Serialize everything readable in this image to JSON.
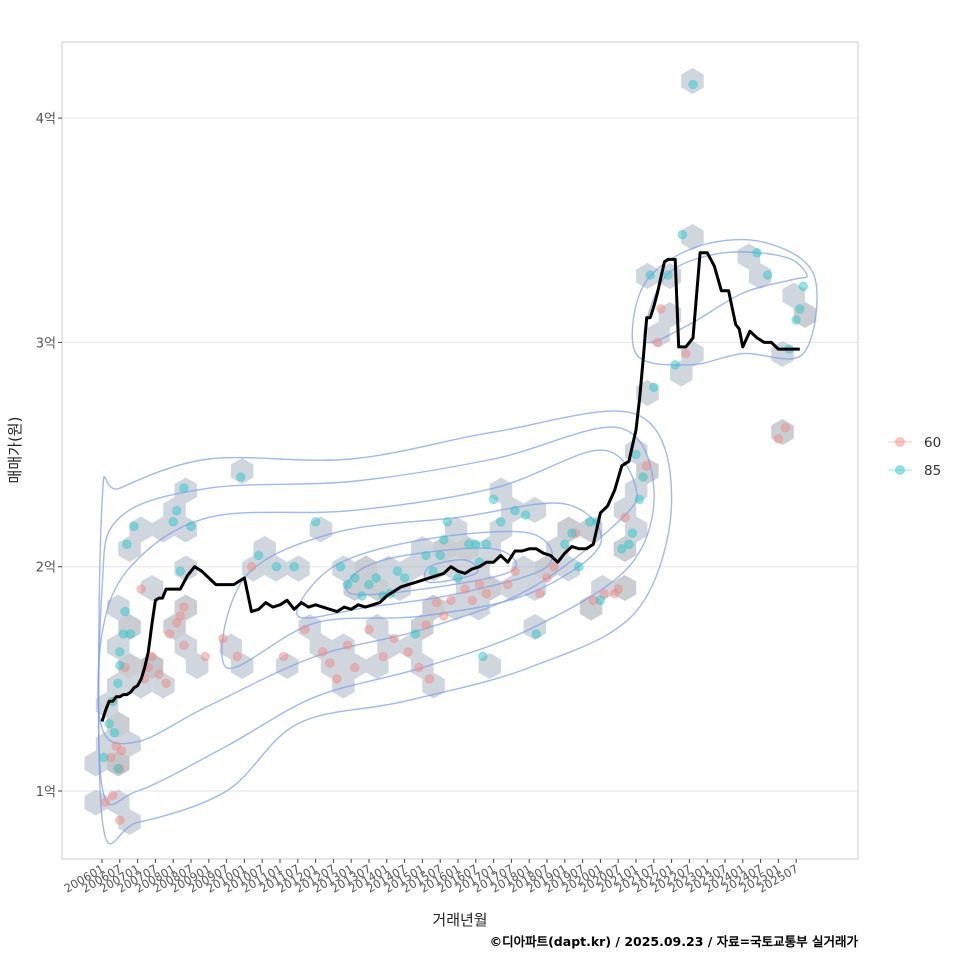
{
  "chart_data": {
    "type": "scatter",
    "title": "",
    "xlabel": "거래년월",
    "ylabel": "매매가(원)",
    "caption": "©디아파트(dapt.kr) / 2025.09.23 / 자료=국토교통부 실거래가",
    "y_unit": "억",
    "ylim": [
      0.7,
      4.33
    ],
    "y_ticks": [
      {
        "v": 1,
        "label": "1억"
      },
      {
        "v": 2,
        "label": "2억"
      },
      {
        "v": 3,
        "label": "3억"
      },
      {
        "v": 4,
        "label": "4억"
      }
    ],
    "x_ticks": [
      "200601",
      "200607",
      "200701",
      "200707",
      "200801",
      "200807",
      "200901",
      "200907",
      "201001",
      "201007",
      "201101",
      "201107",
      "201201",
      "201207",
      "201301",
      "201307",
      "201401",
      "201407",
      "201501",
      "201507",
      "201601",
      "201607",
      "201701",
      "201707",
      "201801",
      "201807",
      "201901",
      "201907",
      "202001",
      "202007",
      "202101",
      "202107",
      "202201",
      "202207",
      "202301",
      "202307",
      "202401",
      "202407",
      "202501",
      "202507"
    ],
    "grid": true,
    "legend": {
      "position": "right",
      "entries": [
        {
          "name": "60",
          "color": "#f08a86"
        },
        {
          "name": "85",
          "color": "#2ec6c9"
        }
      ]
    },
    "colors": {
      "s60": "#f08a86",
      "s85": "#2ec6c9",
      "line": "#000000",
      "contour": "#7b9be8",
      "hex": "#9fa5ab",
      "panel_border": "#cccccc",
      "grid": "#e6e6e6"
    },
    "trend_line": {
      "name": "median",
      "x": [
        2006.0,
        2006.1,
        2006.2,
        2006.3,
        2006.4,
        2006.5,
        2006.6,
        2006.7,
        2006.8,
        2006.9,
        2007.0,
        2007.1,
        2007.2,
        2007.3,
        2007.4,
        2007.5,
        2007.6,
        2007.7,
        2007.8,
        2007.9,
        2008.0,
        2008.2,
        2008.4,
        2008.6,
        2008.8,
        2009.0,
        2009.2,
        2009.4,
        2009.6,
        2009.7,
        2009.8,
        2010.0,
        2010.2,
        2010.4,
        2010.6,
        2010.8,
        2011.0,
        2011.2,
        2011.4,
        2011.6,
        2011.8,
        2012.0,
        2012.2,
        2012.4,
        2012.6,
        2012.8,
        2013.0,
        2013.2,
        2013.4,
        2013.6,
        2013.8,
        2014.0,
        2014.2,
        2014.4,
        2014.6,
        2014.8,
        2015.0,
        2015.2,
        2015.4,
        2015.6,
        2015.8,
        2016.0,
        2016.2,
        2016.4,
        2016.6,
        2016.8,
        2017.0,
        2017.2,
        2017.4,
        2017.6,
        2017.8,
        2018.0,
        2018.2,
        2018.4,
        2018.6,
        2018.8,
        2019.0,
        2019.2,
        2019.4,
        2019.6,
        2019.8,
        2020.0,
        2020.2,
        2020.4,
        2020.6,
        2020.8,
        2021.0,
        2021.1,
        2021.2,
        2021.3,
        2021.4,
        2021.5,
        2021.6,
        2021.7,
        2021.8,
        2021.9,
        2022.0,
        2022.1,
        2022.2,
        2022.3,
        2022.4,
        2022.6,
        2022.8,
        2022.9,
        2023.0,
        2023.2,
        2023.4,
        2023.6,
        2023.8,
        2023.9,
        2024.0,
        2024.2,
        2024.4,
        2024.6,
        2024.8,
        2025.0,
        2025.2,
        2025.4,
        2025.6
      ],
      "y": [
        1.31,
        1.36,
        1.4,
        1.4,
        1.42,
        1.42,
        1.43,
        1.43,
        1.44,
        1.46,
        1.47,
        1.5,
        1.55,
        1.62,
        1.74,
        1.85,
        1.86,
        1.86,
        1.9,
        1.9,
        1.9,
        1.9,
        1.96,
        2.0,
        1.98,
        1.95,
        1.92,
        1.92,
        1.92,
        1.92,
        1.93,
        1.95,
        1.8,
        1.81,
        1.84,
        1.82,
        1.83,
        1.85,
        1.81,
        1.84,
        1.82,
        1.83,
        1.82,
        1.81,
        1.8,
        1.82,
        1.81,
        1.83,
        1.82,
        1.83,
        1.84,
        1.87,
        1.89,
        1.91,
        1.92,
        1.93,
        1.94,
        1.95,
        1.96,
        1.97,
        2.0,
        1.98,
        1.97,
        1.99,
        2.0,
        2.02,
        2.02,
        2.05,
        2.02,
        2.07,
        2.07,
        2.08,
        2.08,
        2.06,
        2.05,
        2.02,
        2.06,
        2.09,
        2.08,
        2.08,
        2.1,
        2.24,
        2.27,
        2.34,
        2.45,
        2.47,
        2.61,
        2.75,
        2.92,
        3.11,
        3.11,
        3.16,
        3.22,
        3.29,
        3.36,
        3.37,
        3.37,
        3.37,
        2.98,
        2.98,
        2.98,
        3.02,
        3.4,
        3.4,
        3.4,
        3.34,
        3.23,
        3.23,
        3.08,
        3.06,
        2.98,
        3.05,
        3.02,
        3.0,
        3.0,
        2.97,
        2.97,
        2.97,
        2.97
      ]
    },
    "series": [
      {
        "name": "60",
        "points": [
          [
            2006.1,
            0.95
          ],
          [
            2006.25,
            1.15
          ],
          [
            2006.4,
            1.2
          ],
          [
            2006.5,
            1.1
          ],
          [
            2006.55,
            1.18
          ],
          [
            2006.65,
            1.55
          ],
          [
            2006.3,
            0.98
          ],
          [
            2006.5,
            0.87
          ],
          [
            2007.1,
            1.9
          ],
          [
            2007.2,
            1.5
          ],
          [
            2007.3,
            1.55
          ],
          [
            2007.4,
            1.6
          ],
          [
            2007.6,
            1.52
          ],
          [
            2007.8,
            1.48
          ],
          [
            2007.9,
            1.7
          ],
          [
            2008.1,
            1.75
          ],
          [
            2008.2,
            1.78
          ],
          [
            2008.3,
            1.82
          ],
          [
            2008.3,
            1.65
          ],
          [
            2008.9,
            1.6
          ],
          [
            2009.4,
            1.68
          ],
          [
            2009.8,
            1.6
          ],
          [
            2010.2,
            2.0
          ],
          [
            2011.1,
            1.6
          ],
          [
            2011.7,
            1.72
          ],
          [
            2012.2,
            1.62
          ],
          [
            2012.4,
            1.57
          ],
          [
            2012.6,
            1.5
          ],
          [
            2012.9,
            1.65
          ],
          [
            2013.1,
            1.55
          ],
          [
            2013.5,
            1.72
          ],
          [
            2013.9,
            1.6
          ],
          [
            2014.2,
            1.68
          ],
          [
            2014.6,
            1.62
          ],
          [
            2014.9,
            1.55
          ],
          [
            2015.1,
            1.74
          ],
          [
            2015.2,
            1.5
          ],
          [
            2015.4,
            1.84
          ],
          [
            2015.6,
            1.78
          ],
          [
            2015.8,
            1.85
          ],
          [
            2016.2,
            1.9
          ],
          [
            2016.4,
            1.85
          ],
          [
            2016.6,
            1.92
          ],
          [
            2016.8,
            1.88
          ],
          [
            2017.4,
            1.92
          ],
          [
            2017.6,
            1.98
          ],
          [
            2018.3,
            1.88
          ],
          [
            2018.5,
            1.95
          ],
          [
            2018.7,
            2.0
          ],
          [
            2019.3,
            2.15
          ],
          [
            2019.8,
            1.85
          ],
          [
            2020.1,
            1.88
          ],
          [
            2020.4,
            1.88
          ],
          [
            2020.5,
            1.9
          ],
          [
            2020.7,
            2.22
          ],
          [
            2021.3,
            2.45
          ],
          [
            2021.6,
            3.0
          ],
          [
            2021.7,
            3.15
          ],
          [
            2022.4,
            2.95
          ],
          [
            2025.0,
            2.57
          ],
          [
            2025.2,
            2.62
          ]
        ]
      },
      {
        "name": "85",
        "points": [
          [
            2006.05,
            1.15
          ],
          [
            2006.2,
            1.3
          ],
          [
            2006.3,
            1.4
          ],
          [
            2006.35,
            1.26
          ],
          [
            2006.45,
            1.48
          ],
          [
            2006.5,
            1.56
          ],
          [
            2006.6,
            1.7
          ],
          [
            2006.65,
            1.8
          ],
          [
            2006.7,
            2.1
          ],
          [
            2006.8,
            1.7
          ],
          [
            2006.9,
            2.18
          ],
          [
            2006.45,
            1.1
          ],
          [
            2006.5,
            1.62
          ],
          [
            2008.0,
            2.2
          ],
          [
            2008.1,
            2.25
          ],
          [
            2008.3,
            2.35
          ],
          [
            2008.5,
            2.18
          ],
          [
            2008.2,
            1.98
          ],
          [
            2009.9,
            2.4
          ],
          [
            2010.4,
            2.05
          ],
          [
            2010.9,
            2.0
          ],
          [
            2011.4,
            2.0
          ],
          [
            2012.0,
            2.2
          ],
          [
            2012.7,
            2.0
          ],
          [
            2012.9,
            1.92
          ],
          [
            2013.1,
            1.95
          ],
          [
            2013.3,
            1.87
          ],
          [
            2013.5,
            1.92
          ],
          [
            2013.7,
            1.95
          ],
          [
            2013.9,
            1.87
          ],
          [
            2014.1,
            1.88
          ],
          [
            2014.3,
            1.98
          ],
          [
            2014.5,
            1.95
          ],
          [
            2014.8,
            1.7
          ],
          [
            2015.1,
            2.05
          ],
          [
            2015.3,
            1.98
          ],
          [
            2015.5,
            2.05
          ],
          [
            2015.6,
            2.12
          ],
          [
            2015.7,
            2.2
          ],
          [
            2016.0,
            1.95
          ],
          [
            2016.3,
            2.1
          ],
          [
            2016.5,
            2.1
          ],
          [
            2016.6,
            2.02
          ],
          [
            2016.8,
            2.1
          ],
          [
            2016.7,
            1.6
          ],
          [
            2017.0,
            2.3
          ],
          [
            2017.2,
            2.2
          ],
          [
            2017.6,
            2.25
          ],
          [
            2017.9,
            2.23
          ],
          [
            2018.2,
            1.7
          ],
          [
            2019.0,
            2.1
          ],
          [
            2019.2,
            2.15
          ],
          [
            2019.4,
            2.0
          ],
          [
            2019.7,
            2.2
          ],
          [
            2019.9,
            2.2
          ],
          [
            2020.0,
            1.85
          ],
          [
            2020.6,
            2.08
          ],
          [
            2020.8,
            2.1
          ],
          [
            2020.9,
            2.15
          ],
          [
            2021.0,
            2.5
          ],
          [
            2021.1,
            2.3
          ],
          [
            2021.2,
            2.4
          ],
          [
            2021.4,
            3.3
          ],
          [
            2021.5,
            2.8
          ],
          [
            2021.9,
            3.3
          ],
          [
            2022.1,
            2.9
          ],
          [
            2022.3,
            3.48
          ],
          [
            2022.6,
            4.15
          ],
          [
            2024.4,
            3.4
          ],
          [
            2024.7,
            3.3
          ],
          [
            2025.5,
            3.1
          ],
          [
            2025.6,
            3.15
          ],
          [
            2025.7,
            3.25
          ],
          [
            2025.3,
            2.97
          ]
        ]
      }
    ]
  }
}
